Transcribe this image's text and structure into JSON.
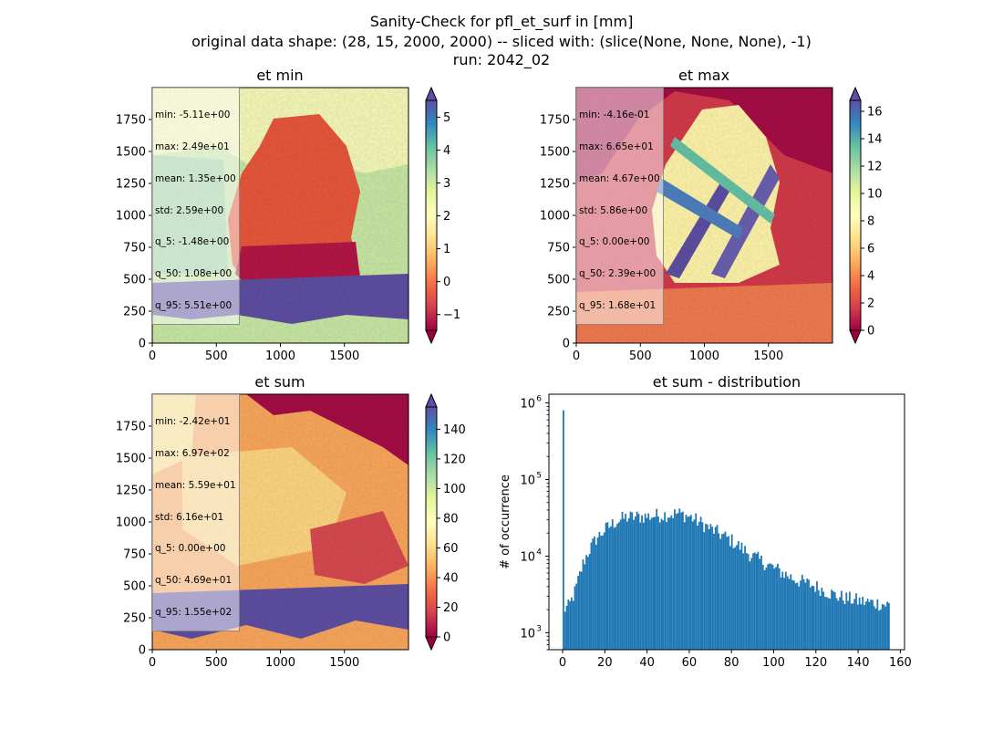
{
  "figure": {
    "title_lines": [
      "Sanity-Check for pfl_et_surf in [mm]",
      "original data shape: (28, 15, 2000, 2000) -- sliced with: (slice(None, None, None), -1)",
      "run: 2042_02"
    ]
  },
  "colors": {
    "land_low": "#9e0142",
    "land_mid": "#f46d43",
    "land_high": "#fee08b",
    "sea": "#abdda4",
    "alpine": "#5e4fa2",
    "histogram": "#1f77b4"
  },
  "colormap_name": "Spectral",
  "chart_data": [
    {
      "type": "heatmap",
      "title": "et min",
      "colormap": "Spectral",
      "xlim": [
        0,
        2000
      ],
      "ylim": [
        0,
        2000
      ],
      "x_ticks": [
        0,
        500,
        1000,
        1500
      ],
      "y_ticks": [
        0,
        250,
        500,
        750,
        1000,
        1250,
        1500,
        1750
      ],
      "colorbar_range": [
        -1.48,
        5.51
      ],
      "colorbar_ticks": [
        -1,
        0,
        1,
        2,
        3,
        4,
        5
      ],
      "colorbar_extend": "both",
      "stats": [
        "min: -5.11e+00",
        "max: 2.49e+01",
        "mean: 1.35e+00",
        "std: 2.59e+00",
        "q_5: -1.48e+00",
        "q_50: 1.08e+00",
        "q_95: 5.51e+00"
      ]
    },
    {
      "type": "heatmap",
      "title": "et max",
      "colormap": "Spectral",
      "xlim": [
        0,
        2000
      ],
      "ylim": [
        0,
        2000
      ],
      "x_ticks": [
        0,
        500,
        1000,
        1500
      ],
      "y_ticks": [
        0,
        250,
        500,
        750,
        1000,
        1250,
        1500,
        1750
      ],
      "colorbar_range": [
        0,
        16.8
      ],
      "colorbar_ticks": [
        0,
        2,
        4,
        6,
        8,
        10,
        12,
        14,
        16
      ],
      "colorbar_extend": "both",
      "stats": [
        "min: -4.16e-01",
        "max: 6.65e+01",
        "mean: 4.67e+00",
        "std: 5.86e+00",
        "q_5: 0.00e+00",
        "q_50: 2.39e+00",
        "q_95: 1.68e+01"
      ]
    },
    {
      "type": "heatmap",
      "title": "et sum",
      "colormap": "Spectral",
      "xlim": [
        0,
        2000
      ],
      "ylim": [
        0,
        2000
      ],
      "x_ticks": [
        0,
        500,
        1000,
        1500
      ],
      "y_ticks": [
        0,
        250,
        500,
        750,
        1000,
        1250,
        1500,
        1750
      ],
      "colorbar_range": [
        0,
        155
      ],
      "colorbar_ticks": [
        0,
        20,
        40,
        60,
        80,
        100,
        120,
        140
      ],
      "colorbar_extend": "both",
      "stats": [
        "min: -2.42e+01",
        "max: 6.97e+02",
        "mean: 5.59e+01",
        "std: 6.16e+01",
        "q_5: 0.00e+00",
        "q_50: 4.69e+01",
        "q_95: 1.55e+02"
      ]
    },
    {
      "type": "bar",
      "title": "et sum - distribution",
      "ylabel": "# of occurrence",
      "y_scale": "log",
      "xlim": [
        -6.5,
        162
      ],
      "ylim": [
        600,
        1300000
      ],
      "x_ticks": [
        0,
        20,
        40,
        60,
        80,
        100,
        120,
        140,
        160
      ],
      "y_ticks": [
        1000,
        10000,
        100000,
        1000000
      ],
      "y_tick_labels": [
        [
          "10",
          "3"
        ],
        [
          "10",
          "4"
        ],
        [
          "10",
          "5"
        ],
        [
          "10",
          "6"
        ]
      ],
      "bin_range": [
        0,
        155
      ],
      "bin_count": 200,
      "spike": {
        "x": 0,
        "count": 800000
      },
      "profile": [
        {
          "x": 0.5,
          "count": 2000
        },
        {
          "x": 3,
          "count": 2200
        },
        {
          "x": 6,
          "count": 3500
        },
        {
          "x": 8,
          "count": 5500
        },
        {
          "x": 10,
          "count": 8500
        },
        {
          "x": 13,
          "count": 12500
        },
        {
          "x": 16,
          "count": 17000
        },
        {
          "x": 20,
          "count": 22000
        },
        {
          "x": 25,
          "count": 28000
        },
        {
          "x": 30,
          "count": 32000
        },
        {
          "x": 40,
          "count": 33000
        },
        {
          "x": 50,
          "count": 35000
        },
        {
          "x": 55,
          "count": 36000
        },
        {
          "x": 60,
          "count": 33000
        },
        {
          "x": 70,
          "count": 23000
        },
        {
          "x": 80,
          "count": 16000
        },
        {
          "x": 90,
          "count": 10000
        },
        {
          "x": 100,
          "count": 7000
        },
        {
          "x": 110,
          "count": 5000
        },
        {
          "x": 120,
          "count": 4000
        },
        {
          "x": 130,
          "count": 3000
        },
        {
          "x": 140,
          "count": 2600
        },
        {
          "x": 150,
          "count": 2400
        },
        {
          "x": 155,
          "count": 2300
        }
      ]
    }
  ]
}
